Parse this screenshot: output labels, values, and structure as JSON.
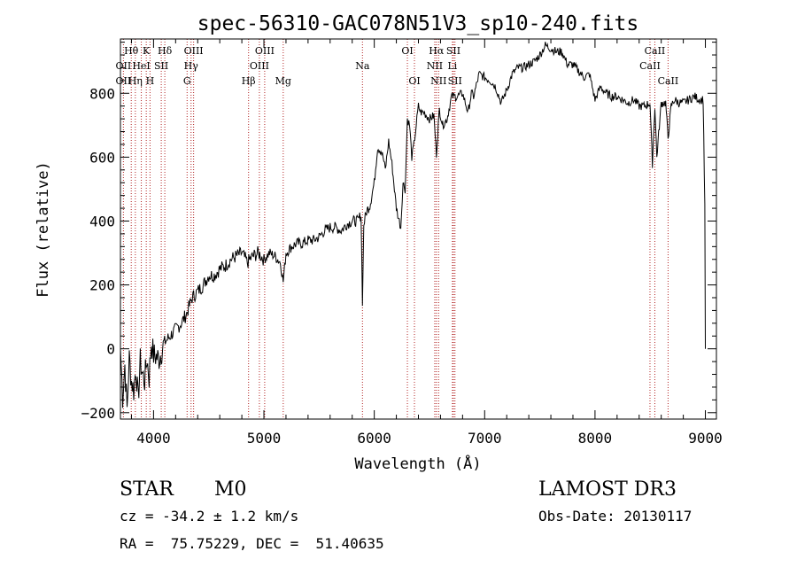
{
  "chart_data": {
    "type": "line",
    "title": "spec-56310-GAC078N51V3_sp10-240.fits",
    "xlabel": "Wavelength (Å)",
    "ylabel": "Flux (relative)",
    "xlim": [
      3700,
      9100
    ],
    "ylim": [
      -220,
      970
    ],
    "x_ticks": [
      4000,
      5000,
      6000,
      7000,
      8000,
      9000
    ],
    "y_ticks": [
      -200,
      0,
      200,
      400,
      600,
      800
    ],
    "grid": false,
    "series": [
      {
        "name": "spectrum",
        "color": "#000000",
        "x": [
          3700,
          3720,
          3740,
          3760,
          3780,
          3800,
          3820,
          3840,
          3860,
          3880,
          3900,
          3920,
          3940,
          3960,
          3980,
          4000,
          4050,
          4100,
          4150,
          4200,
          4250,
          4300,
          4350,
          4400,
          4450,
          4500,
          4550,
          4600,
          4650,
          4700,
          4750,
          4800,
          4850,
          4900,
          4950,
          5000,
          5050,
          5100,
          5150,
          5175,
          5200,
          5250,
          5300,
          5350,
          5400,
          5450,
          5500,
          5550,
          5600,
          5650,
          5700,
          5750,
          5800,
          5850,
          5880,
          5893,
          5905,
          5930,
          5960,
          6000,
          6030,
          6060,
          6080,
          6100,
          6130,
          6160,
          6200,
          6220,
          6240,
          6260,
          6280,
          6300,
          6320,
          6340,
          6360,
          6380,
          6400,
          6420,
          6450,
          6500,
          6540,
          6563,
          6590,
          6620,
          6660,
          6700,
          6750,
          6800,
          6850,
          6880,
          6900,
          6950,
          7000,
          7050,
          7100,
          7150,
          7200,
          7250,
          7300,
          7350,
          7400,
          7450,
          7500,
          7550,
          7600,
          7650,
          7700,
          7750,
          7800,
          7850,
          7900,
          7950,
          8000,
          8050,
          8100,
          8150,
          8200,
          8250,
          8300,
          8350,
          8400,
          8450,
          8498,
          8520,
          8542,
          8560,
          8600,
          8640,
          8662,
          8690,
          8720,
          8760,
          8800,
          8850,
          8900,
          8950,
          8980,
          8995,
          9000
        ],
        "values": [
          0,
          -150,
          -50,
          -190,
          -30,
          -100,
          -130,
          -60,
          -160,
          -40,
          -80,
          -100,
          -30,
          -90,
          20,
          -20,
          -30,
          20,
          40,
          60,
          80,
          110,
          160,
          180,
          200,
          230,
          230,
          250,
          260,
          280,
          290,
          300,
          270,
          290,
          300,
          280,
          300,
          290,
          270,
          210,
          300,
          320,
          330,
          330,
          340,
          340,
          350,
          370,
          380,
          380,
          370,
          390,
          400,
          400,
          420,
          150,
          390,
          430,
          450,
          520,
          630,
          620,
          600,
          560,
          650,
          580,
          440,
          410,
          380,
          520,
          500,
          720,
          700,
          600,
          640,
          700,
          760,
          740,
          740,
          720,
          730,
          610,
          750,
          700,
          720,
          790,
          790,
          800,
          740,
          800,
          790,
          860,
          850,
          840,
          820,
          770,
          810,
          860,
          880,
          880,
          890,
          900,
          920,
          950,
          940,
          930,
          930,
          890,
          890,
          870,
          850,
          860,
          780,
          820,
          800,
          790,
          790,
          780,
          770,
          780,
          760,
          760,
          770,
          580,
          760,
          600,
          770,
          770,
          660,
          760,
          780,
          770,
          770,
          780,
          790,
          780,
          780,
          440,
          0
        ]
      }
    ],
    "line_labels": [
      {
        "text": "Hθ",
        "wavelength": 3798,
        "row": 1
      },
      {
        "text": "K",
        "wavelength": 3934,
        "row": 1
      },
      {
        "text": "Hδ",
        "wavelength": 4102,
        "row": 1
      },
      {
        "text": "OIII",
        "wavelength": 4363,
        "row": 1
      },
      {
        "text": "OIII",
        "wavelength": 5007,
        "row": 1
      },
      {
        "text": "OI",
        "wavelength": 6300,
        "row": 1
      },
      {
        "text": "Hα",
        "wavelength": 6563,
        "row": 1
      },
      {
        "text": "SII",
        "wavelength": 6717,
        "row": 1
      },
      {
        "text": "CaII",
        "wavelength": 8542,
        "row": 1
      },
      {
        "text": "OII",
        "wavelength": 3727,
        "row": 2
      },
      {
        "text": "HeI",
        "wavelength": 3889,
        "row": 2
      },
      {
        "text": "SII",
        "wavelength": 4070,
        "row": 2
      },
      {
        "text": "Hγ",
        "wavelength": 4340,
        "row": 2
      },
      {
        "text": "OIII",
        "wavelength": 4959,
        "row": 2
      },
      {
        "text": "Na",
        "wavelength": 5893,
        "row": 2
      },
      {
        "text": "NII",
        "wavelength": 6548,
        "row": 2
      },
      {
        "text": "Li",
        "wavelength": 6708,
        "row": 2
      },
      {
        "text": "CaII",
        "wavelength": 8498,
        "row": 2
      },
      {
        "text": "OII",
        "wavelength": 3727,
        "row": 3
      },
      {
        "text": "Hη",
        "wavelength": 3835,
        "row": 3
      },
      {
        "text": "H",
        "wavelength": 3968,
        "row": 3
      },
      {
        "text": "G",
        "wavelength": 4304,
        "row": 3
      },
      {
        "text": "Hβ",
        "wavelength": 4861,
        "row": 3
      },
      {
        "text": "Mg",
        "wavelength": 5175,
        "row": 3
      },
      {
        "text": "OI",
        "wavelength": 6364,
        "row": 3
      },
      {
        "text": "NII",
        "wavelength": 6583,
        "row": 3
      },
      {
        "text": "SII",
        "wavelength": 6731,
        "row": 3
      },
      {
        "text": "CaII",
        "wavelength": 8662,
        "row": 3
      }
    ],
    "line_wavelengths": [
      3727,
      3798,
      3835,
      3889,
      3934,
      3968,
      4070,
      4102,
      4304,
      4340,
      4363,
      4861,
      4959,
      5007,
      5175,
      5893,
      6300,
      6364,
      6548,
      6563,
      6583,
      6708,
      6717,
      6731,
      8498,
      8542,
      8662
    ]
  },
  "info": {
    "class_label": "STAR",
    "subclass": "M0",
    "cz": "cz = -34.2 ± 1.2 km/s",
    "coords": "RA =  75.75229, DEC =  51.40635",
    "survey": "LAMOST DR3",
    "obs_date": "Obs-Date: 20130117"
  },
  "colors": {
    "line_marker": "#b22222",
    "spectrum": "#000000"
  }
}
